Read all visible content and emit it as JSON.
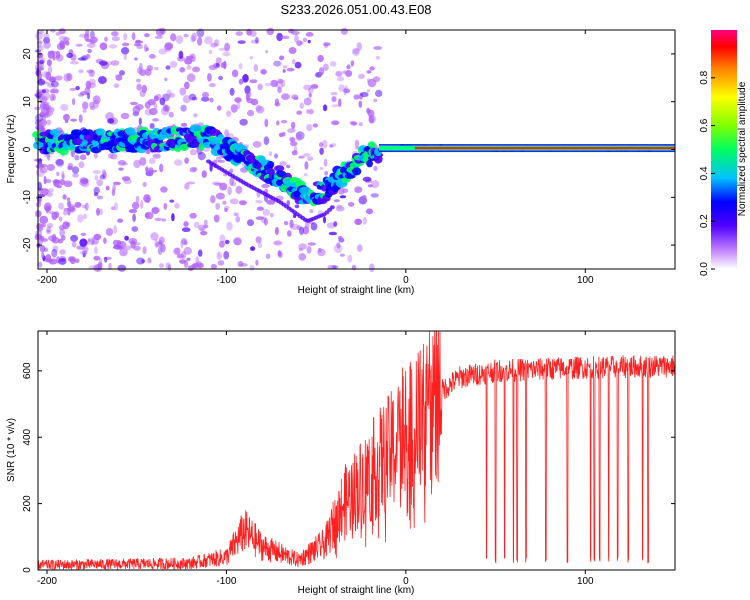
{
  "title": "S233.2026.051.00.43.E08",
  "chart_data": [
    {
      "type": "heatmap",
      "name": "spectrogram",
      "xlabel": "Height of straight line (km)",
      "ylabel": "Frequency (Hz)",
      "xlim": [
        -205,
        150
      ],
      "ylim": [
        -25,
        25
      ],
      "xticks": [
        -200,
        -100,
        0,
        100
      ],
      "yticks": [
        -20,
        -10,
        0,
        10,
        20
      ],
      "colorbar": {
        "label": "Normalized spectral amplitude",
        "range": [
          0,
          1
        ],
        "ticks": [
          "0.0",
          "0.2",
          "0.4",
          "0.6",
          "0.8"
        ],
        "colors": [
          "#ffffff",
          "#b060ff",
          "#5000ff",
          "#0000ff",
          "#00c0ff",
          "#00ff60",
          "#80ff00",
          "#ffff00",
          "#ff8000",
          "#ff0000",
          "#ff0080"
        ]
      },
      "trace": {
        "x": [
          -205,
          -140,
          -110,
          -90,
          -70,
          -55,
          -45,
          -35,
          -25,
          -15,
          0,
          50,
          100,
          150
        ],
        "y": [
          1.5,
          2.0,
          2.5,
          -2.0,
          -6.0,
          -10.0,
          -8.5,
          -5.0,
          -2.0,
          0.0,
          0.5,
          0.2,
          0.2,
          0.2
        ]
      }
    },
    {
      "type": "line",
      "name": "snr",
      "xlabel": "Height of straight line (km)",
      "ylabel": "SNR (10 * v/v)",
      "xlim": [
        -205,
        150
      ],
      "ylim": [
        0,
        720
      ],
      "xticks": [
        -200,
        -100,
        0,
        100
      ],
      "yticks": [
        0,
        200,
        400,
        600
      ],
      "color": "#ff2020",
      "envelope": {
        "x": [
          -205,
          -120,
          -100,
          -90,
          -80,
          -60,
          -45,
          -35,
          -25,
          -15,
          0,
          10,
          20,
          30,
          50,
          100,
          150
        ],
        "y": [
          15,
          20,
          40,
          120,
          70,
          30,
          80,
          200,
          260,
          320,
          400,
          460,
          540,
          580,
          600,
          610,
          615
        ]
      },
      "dropouts": [
        45,
        50,
        55,
        60,
        62,
        67,
        78,
        90,
        103,
        105,
        108,
        113,
        118,
        124,
        132,
        135
      ]
    }
  ]
}
